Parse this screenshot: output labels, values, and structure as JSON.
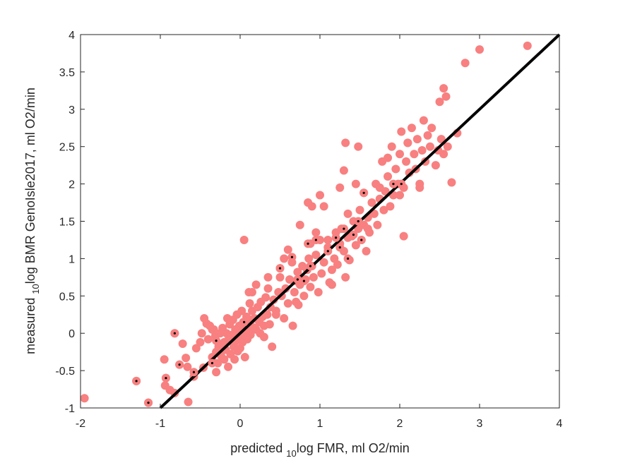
{
  "chart_data": {
    "type": "scatter",
    "xlabel": {
      "pre": "predicted ",
      "sub": "10",
      "post": "log FMR, ml O2/min"
    },
    "ylabel": {
      "pre": "measured ",
      "sub": "10",
      "post": "log BMR GenoIsle2017, ml O2/min"
    },
    "xlim": [
      -2,
      4
    ],
    "ylim": [
      -1,
      4
    ],
    "xticks": [
      "-2",
      "-1",
      "0",
      "1",
      "2",
      "3",
      "4"
    ],
    "yticks": [
      "-1",
      "-0.5",
      "0",
      "0.5",
      "1",
      "1.5",
      "2",
      "2.5",
      "3",
      "3.5",
      "4"
    ],
    "grid": false,
    "identity_line": {
      "x": [
        -1,
        4
      ],
      "y": [
        -1,
        4
      ],
      "color": "#000000"
    },
    "marker_color": "#f88080",
    "points": [
      [
        -1.95,
        -0.87
      ],
      [
        -1.3,
        -0.64
      ],
      [
        -1.15,
        -0.93
      ],
      [
        -0.93,
        -0.6
      ],
      [
        -0.88,
        -0.76
      ],
      [
        -0.82,
        -0.8
      ],
      [
        -0.94,
        -0.7
      ],
      [
        -0.82,
        0.0
      ],
      [
        -0.76,
        -0.42
      ],
      [
        -0.72,
        -0.14
      ],
      [
        -0.68,
        -0.33
      ],
      [
        -0.66,
        -0.45
      ],
      [
        -0.65,
        -0.92
      ],
      [
        -0.58,
        -0.58
      ],
      [
        -0.5,
        -0.12
      ],
      [
        -0.48,
        0.0
      ],
      [
        -0.46,
        -0.46
      ],
      [
        -0.42,
        0.13
      ],
      [
        -0.4,
        -0.08
      ],
      [
        -0.38,
        0.1
      ],
      [
        -0.35,
        -0.32
      ],
      [
        -0.33,
        0.05
      ],
      [
        -0.31,
        -0.03
      ],
      [
        -0.3,
        -0.25
      ],
      [
        -0.3,
        -0.52
      ],
      [
        -0.28,
        -0.4
      ],
      [
        -0.27,
        -0.18
      ],
      [
        -0.25,
        0.0
      ],
      [
        -0.24,
        -0.3
      ],
      [
        -0.22,
        0.07
      ],
      [
        -0.21,
        -0.16
      ],
      [
        -0.2,
        -0.35
      ],
      [
        -0.2,
        -0.12
      ],
      [
        -0.18,
        -0.22
      ],
      [
        -0.17,
        0.0
      ],
      [
        -0.16,
        0.2
      ],
      [
        -0.15,
        -0.45
      ],
      [
        -0.14,
        -0.07
      ],
      [
        -0.13,
        0.12
      ],
      [
        -0.12,
        -0.28
      ],
      [
        -0.1,
        -0.02
      ],
      [
        -0.09,
        0.18
      ],
      [
        -0.08,
        -0.18
      ],
      [
        -0.07,
        -0.35
      ],
      [
        -0.06,
        0.05
      ],
      [
        -0.05,
        -0.1
      ],
      [
        -0.04,
        0.25
      ],
      [
        -0.03,
        -0.24
      ],
      [
        -0.02,
        -0.05
      ],
      [
        -0.01,
        0.1
      ],
      [
        0.0,
        -0.2
      ],
      [
        0.01,
        0.02
      ],
      [
        0.02,
        0.3
      ],
      [
        0.03,
        -0.12
      ],
      [
        0.04,
        0.15
      ],
      [
        0.05,
        -0.03
      ],
      [
        0.06,
        -0.32
      ],
      [
        0.07,
        0.08
      ],
      [
        0.08,
        0.22
      ],
      [
        0.09,
        -0.08
      ],
      [
        0.1,
        0.14
      ],
      [
        0.1,
        0.05
      ],
      [
        0.11,
        0.55
      ],
      [
        0.12,
        0.4
      ],
      [
        0.13,
        -0.02
      ],
      [
        0.14,
        0.18
      ],
      [
        0.15,
        0.3
      ],
      [
        0.16,
        0.08
      ],
      [
        0.18,
        0.2
      ],
      [
        0.2,
        0.05
      ],
      [
        0.22,
        0.35
      ],
      [
        0.24,
        0.15
      ],
      [
        0.25,
        0.0
      ],
      [
        0.26,
        0.42
      ],
      [
        0.28,
        0.22
      ],
      [
        0.3,
        0.1
      ],
      [
        0.32,
        0.48
      ],
      [
        0.34,
        0.25
      ],
      [
        0.35,
        0.6
      ],
      [
        0.37,
        0.12
      ],
      [
        0.38,
        0.35
      ],
      [
        0.4,
        -0.18
      ],
      [
        0.42,
        0.45
      ],
      [
        0.45,
        0.3
      ],
      [
        0.48,
        0.55
      ],
      [
        0.5,
        0.75
      ],
      [
        0.5,
        0.87
      ],
      [
        0.52,
        0.5
      ],
      [
        0.55,
        0.2
      ],
      [
        0.57,
        0.6
      ],
      [
        0.6,
        0.4
      ],
      [
        0.62,
        0.72
      ],
      [
        0.65,
        0.95
      ],
      [
        0.66,
        0.1
      ],
      [
        0.68,
        0.55
      ],
      [
        0.7,
        0.7
      ],
      [
        0.72,
        0.82
      ],
      [
        0.73,
        0.38
      ],
      [
        0.75,
        0.65
      ],
      [
        0.78,
        0.9
      ],
      [
        0.8,
        0.5
      ],
      [
        0.82,
        0.72
      ],
      [
        0.84,
        0.85
      ],
      [
        0.86,
        1.0
      ],
      [
        0.88,
        0.62
      ],
      [
        0.88,
        1.2
      ],
      [
        0.9,
        0.9
      ],
      [
        0.92,
        0.75
      ],
      [
        0.95,
        1.05
      ],
      [
        0.98,
        0.55
      ],
      [
        1.0,
        1.25
      ],
      [
        1.02,
        0.8
      ],
      [
        1.05,
        0.95
      ],
      [
        1.1,
        1.15
      ],
      [
        1.12,
        0.68
      ],
      [
        1.15,
        0.85
      ],
      [
        1.18,
        1.0
      ],
      [
        1.2,
        1.35
      ],
      [
        1.22,
        0.92
      ],
      [
        1.25,
        1.2
      ],
      [
        1.27,
        1.4
      ],
      [
        1.3,
        1.1
      ],
      [
        1.32,
        0.75
      ],
      [
        1.35,
        1.28
      ],
      [
        1.37,
        0.98
      ],
      [
        1.4,
        1.3
      ],
      [
        1.42,
        1.5
      ],
      [
        1.45,
        1.18
      ],
      [
        1.48,
        1.4
      ],
      [
        1.5,
        1.65
      ],
      [
        1.52,
        1.25
      ],
      [
        1.55,
        1.45
      ],
      [
        1.55,
        1.88
      ],
      [
        1.58,
        1.1
      ],
      [
        1.6,
        1.55
      ],
      [
        1.62,
        1.35
      ],
      [
        1.65,
        1.75
      ],
      [
        1.68,
        1.6
      ],
      [
        1.7,
        2.0
      ],
      [
        1.72,
        1.45
      ],
      [
        1.75,
        1.8
      ],
      [
        1.78,
        2.3
      ],
      [
        1.8,
        1.65
      ],
      [
        1.82,
        1.9
      ],
      [
        1.85,
        2.1
      ],
      [
        1.88,
        1.7
      ],
      [
        1.9,
        2.5
      ],
      [
        1.92,
        1.85
      ],
      [
        1.95,
        2.2
      ],
      [
        1.98,
        2.0
      ],
      [
        2.0,
        2.4
      ],
      [
        2.02,
        2.7
      ],
      [
        2.05,
        1.95
      ],
      [
        2.08,
        2.3
      ],
      [
        2.1,
        2.55
      ],
      [
        2.12,
        2.15
      ],
      [
        2.15,
        2.75
      ],
      [
        2.18,
        2.4
      ],
      [
        2.2,
        2.2
      ],
      [
        2.22,
        2.6
      ],
      [
        2.25,
        2.0
      ],
      [
        2.28,
        2.45
      ],
      [
        2.3,
        2.85
      ],
      [
        2.32,
        2.3
      ],
      [
        2.35,
        2.65
      ],
      [
        2.38,
        2.5
      ],
      [
        2.4,
        2.75
      ],
      [
        2.45,
        2.25
      ],
      [
        2.48,
        2.45
      ],
      [
        2.5,
        3.1
      ],
      [
        2.52,
        2.6
      ],
      [
        2.55,
        2.4
      ],
      [
        2.55,
        3.28
      ],
      [
        2.58,
        3.17
      ],
      [
        2.6,
        2.5
      ],
      [
        2.65,
        2.02
      ],
      [
        2.72,
        2.68
      ],
      [
        2.82,
        3.62
      ],
      [
        3.0,
        3.8
      ],
      [
        3.6,
        3.85
      ],
      [
        -0.95,
        -0.35
      ],
      [
        -0.55,
        -0.2
      ],
      [
        -0.45,
        0.2
      ],
      [
        -0.35,
        0.05
      ],
      [
        0.05,
        1.25
      ],
      [
        0.3,
        -0.05
      ],
      [
        0.45,
        0.25
      ],
      [
        0.6,
        1.12
      ],
      [
        0.7,
        0.42
      ],
      [
        0.75,
        1.45
      ],
      [
        0.85,
        1.75
      ],
      [
        0.9,
        1.7
      ],
      [
        1.0,
        1.85
      ],
      [
        1.05,
        1.7
      ],
      [
        1.15,
        0.65
      ],
      [
        1.25,
        1.95
      ],
      [
        1.3,
        2.18
      ],
      [
        1.32,
        2.55
      ],
      [
        1.45,
        2.0
      ],
      [
        1.48,
        2.5
      ],
      [
        1.6,
        1.4
      ],
      [
        1.75,
        1.95
      ],
      [
        1.85,
        2.35
      ],
      [
        2.0,
        1.85
      ],
      [
        2.05,
        1.3
      ],
      [
        2.1,
        2.55
      ],
      [
        2.25,
        1.95
      ],
      [
        0.15,
        0.55
      ],
      [
        0.2,
        0.65
      ],
      [
        0.35,
        0.75
      ],
      [
        0.55,
        1.0
      ],
      [
        0.95,
        1.35
      ],
      [
        1.1,
        1.25
      ],
      [
        1.35,
        1.6
      ]
    ],
    "dot_points": [
      [
        -1.3,
        -0.64
      ],
      [
        -1.15,
        -0.93
      ],
      [
        -0.93,
        -0.6
      ],
      [
        -0.82,
        0.0
      ],
      [
        -0.76,
        -0.42
      ],
      [
        -0.58,
        -0.52
      ],
      [
        -0.35,
        -0.4
      ],
      [
        -0.3,
        -0.1
      ],
      [
        0.05,
        0.15
      ],
      [
        0.5,
        0.87
      ],
      [
        0.65,
        1.02
      ],
      [
        0.8,
        0.7
      ],
      [
        0.88,
        0.9
      ],
      [
        0.85,
        1.2
      ],
      [
        0.95,
        1.25
      ],
      [
        1.1,
        1.1
      ],
      [
        1.2,
        1.28
      ],
      [
        1.25,
        1.15
      ],
      [
        1.3,
        1.4
      ],
      [
        1.35,
        1.0
      ],
      [
        1.42,
        1.32
      ],
      [
        1.48,
        1.5
      ],
      [
        1.52,
        1.25
      ],
      [
        1.55,
        1.88
      ],
      [
        0.72,
        0.72
      ],
      [
        1.92,
        2.0
      ],
      [
        2.02,
        2.0
      ]
    ]
  }
}
